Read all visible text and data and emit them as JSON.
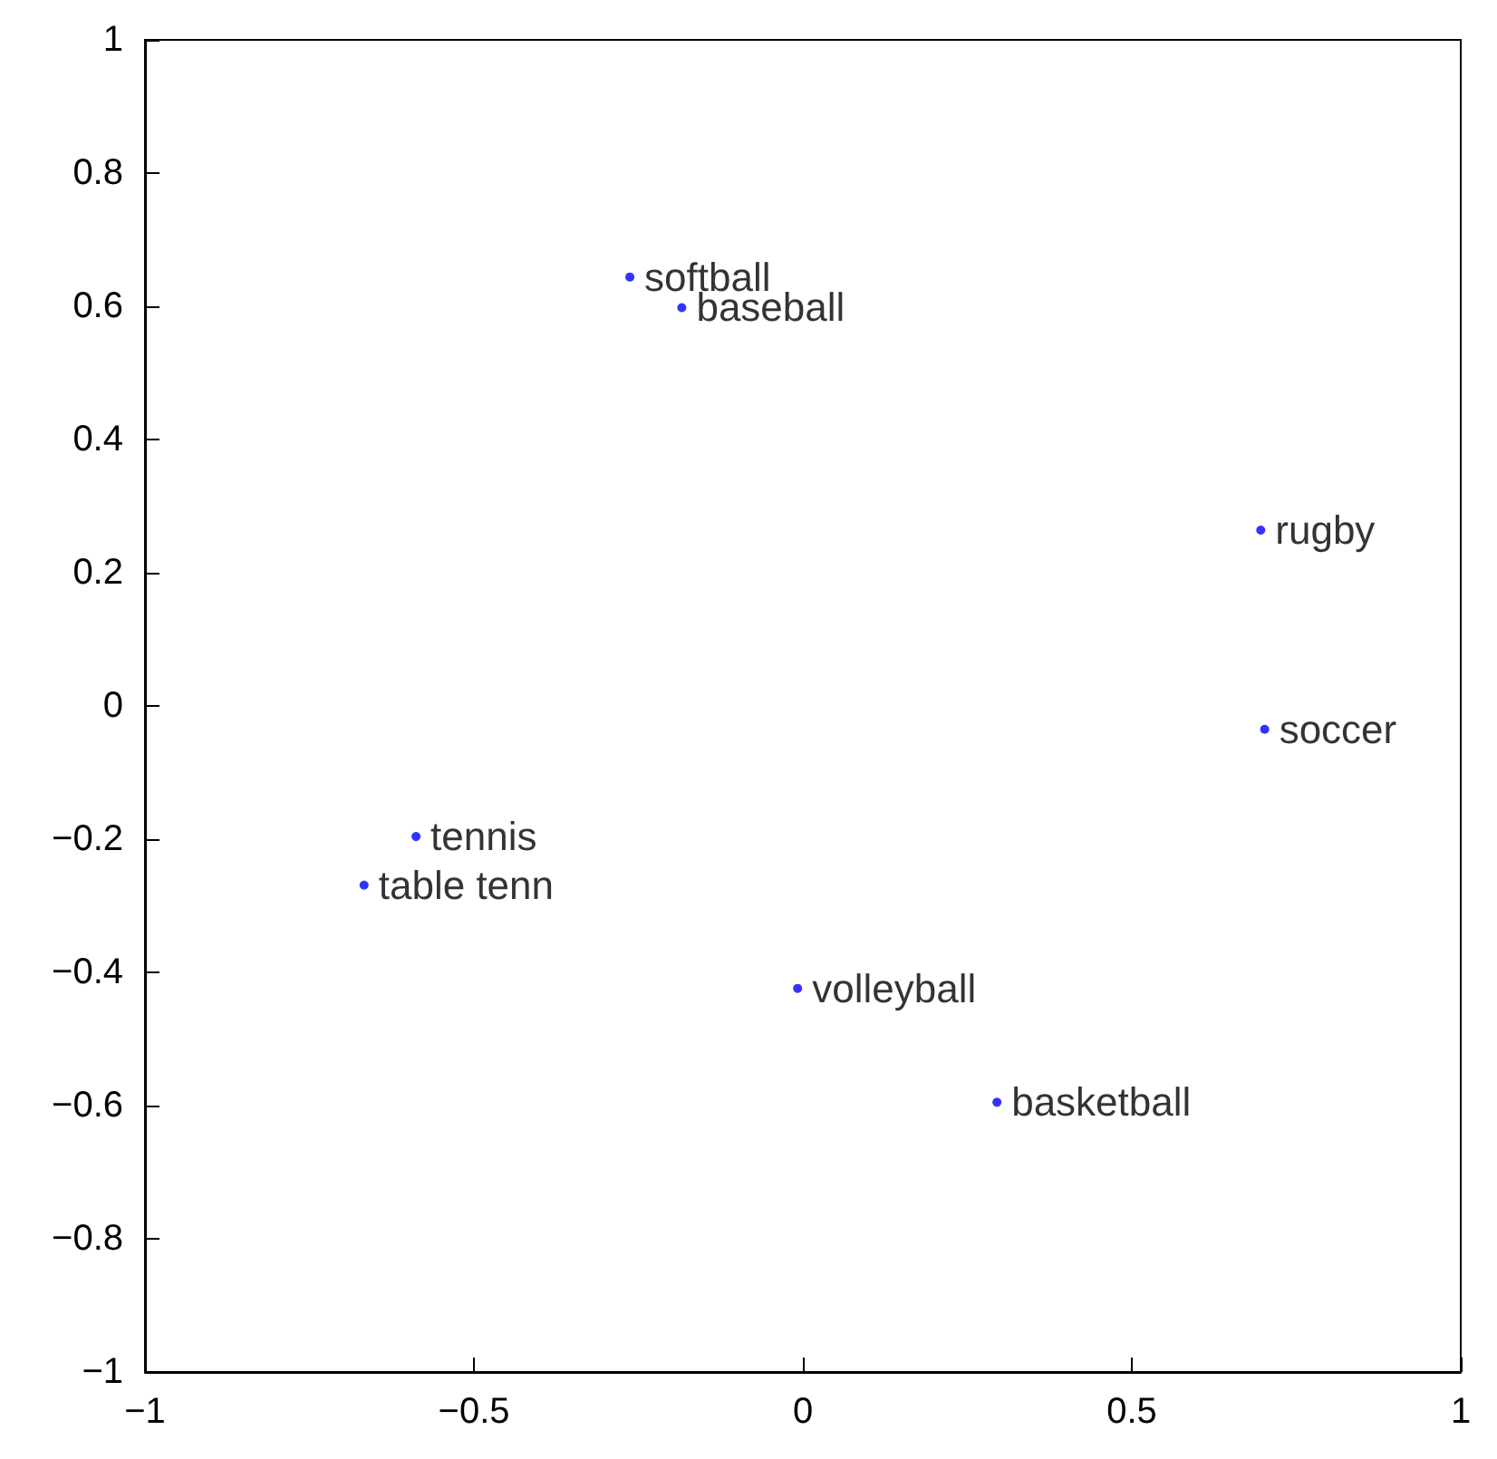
{
  "chart_data": {
    "type": "scatter",
    "x": [
      -0.263,
      -0.184,
      0.696,
      0.702,
      -0.588,
      -0.667,
      -0.008,
      0.295
    ],
    "values": [
      0.644,
      0.598,
      0.264,
      -0.035,
      -0.196,
      -0.269,
      -0.424,
      -0.595
    ],
    "color": "#0000ff",
    "marker": "circle",
    "grid": false,
    "xlim": [
      -1,
      1
    ],
    "xticks": [
      -1,
      -0.5,
      0,
      0.5,
      1
    ],
    "ylim": [
      -1,
      1
    ],
    "yticks": [
      -1,
      -0.8,
      -0.6,
      -0.4,
      -0.2,
      0,
      0.2,
      0.4,
      0.6,
      0.8,
      1
    ],
    "annotations": [
      {
        "text": "softball",
        "x": -0.263,
        "y": 0.644
      },
      {
        "text": "baseball",
        "x": -0.184,
        "y": 0.598
      },
      {
        "text": "rugby",
        "x": 0.696,
        "y": 0.264
      },
      {
        "text": "soccer",
        "x": 0.702,
        "y": -0.035
      },
      {
        "text": "tennis",
        "x": -0.588,
        "y": -0.196
      },
      {
        "text": "table tenn",
        "x": -0.667,
        "y": -0.269
      },
      {
        "text": "volleyball",
        "x": -0.008,
        "y": -0.424
      },
      {
        "text": "basketball",
        "x": 0.295,
        "y": -0.595
      }
    ]
  }
}
